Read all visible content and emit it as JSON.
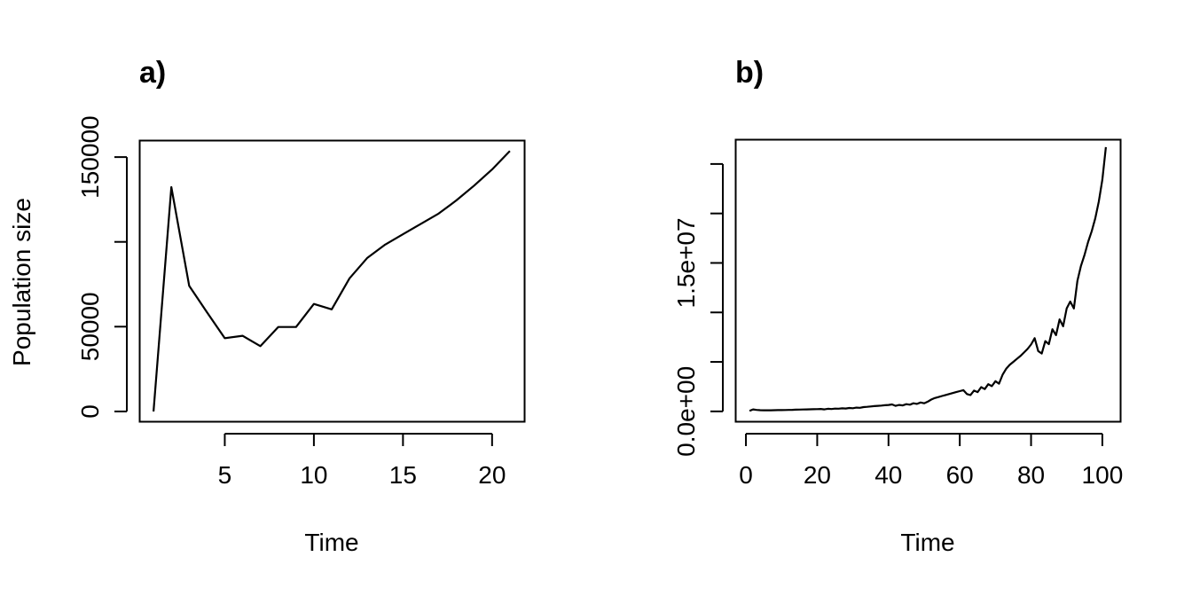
{
  "figure": {
    "panels": [
      {
        "label": "a)"
      },
      {
        "label": "b)"
      }
    ]
  },
  "chart_data": [
    {
      "type": "line",
      "title": "a)",
      "xlabel": "Time",
      "ylabel": "Population size",
      "xlim": [
        0.2,
        21.8
      ],
      "ylim": [
        -5800,
        160000
      ],
      "x_ticks": [
        5,
        10,
        15,
        20
      ],
      "x_tick_labels": [
        "5",
        "10",
        "15",
        "20"
      ],
      "y_ticks": [
        0,
        50000,
        100000,
        150000
      ],
      "y_tick_labels": [
        "0",
        "50000",
        "",
        "150000"
      ],
      "grid": false,
      "legend": null,
      "x": [
        1,
        2,
        3,
        4,
        5,
        6,
        7,
        8,
        9,
        10,
        11,
        12,
        13,
        14,
        15,
        16,
        17,
        18,
        19,
        20,
        21
      ],
      "values": [
        0,
        132300,
        74100,
        58500,
        43200,
        44600,
        38500,
        49800,
        49800,
        63400,
        60200,
        78500,
        90600,
        98400,
        104500,
        110600,
        116700,
        124500,
        133200,
        142700,
        153600
      ]
    },
    {
      "type": "line",
      "title": "b)",
      "xlabel": "Time",
      "ylabel": "",
      "xlim": [
        -3,
        105
      ],
      "ylim": [
        -1000000,
        27500000
      ],
      "x_ticks": [
        0,
        20,
        40,
        60,
        80,
        100
      ],
      "x_tick_labels": [
        "0",
        "20",
        "40",
        "60",
        "80",
        "100"
      ],
      "y_ticks": [
        0,
        5000000,
        10000000,
        15000000,
        20000000,
        25000000
      ],
      "y_tick_labels": [
        "0.0e+00",
        "",
        "",
        "1.5e+07",
        "",
        ""
      ],
      "grid": false,
      "legend": null,
      "x": [
        1,
        2,
        3,
        4,
        5,
        6,
        7,
        8,
        9,
        10,
        11,
        12,
        13,
        14,
        15,
        16,
        17,
        18,
        19,
        20,
        21,
        22,
        23,
        24,
        25,
        26,
        27,
        28,
        29,
        30,
        31,
        32,
        33,
        34,
        35,
        36,
        37,
        38,
        39,
        40,
        41,
        42,
        43,
        44,
        45,
        46,
        47,
        48,
        49,
        50,
        51,
        52,
        53,
        54,
        55,
        56,
        57,
        58,
        59,
        60,
        61,
        62,
        63,
        64,
        65,
        66,
        67,
        68,
        69,
        70,
        71,
        72,
        73,
        74,
        75,
        76,
        77,
        78,
        79,
        80,
        81,
        82,
        83,
        84,
        85,
        86,
        87,
        88,
        89,
        90,
        91,
        92,
        93,
        94,
        95,
        96,
        97,
        98,
        99,
        100,
        101
      ],
      "values": [
        50000,
        200000,
        150000,
        120000,
        110000,
        110000,
        115000,
        120000,
        125000,
        130000,
        140000,
        150000,
        160000,
        170000,
        180000,
        190000,
        200000,
        210000,
        220000,
        230000,
        245000,
        200000,
        260000,
        240000,
        280000,
        270000,
        310000,
        290000,
        340000,
        320000,
        380000,
        360000,
        430000,
        460000,
        500000,
        530000,
        560000,
        590000,
        620000,
        650000,
        700000,
        560000,
        650000,
        600000,
        730000,
        680000,
        820000,
        760000,
        900000,
        820000,
        980000,
        1200000,
        1350000,
        1450000,
        1550000,
        1650000,
        1750000,
        1850000,
        1950000,
        2050000,
        2150000,
        1750000,
        1650000,
        2100000,
        1950000,
        2450000,
        2250000,
        2750000,
        2550000,
        3050000,
        2800000,
        3700000,
        4300000,
        4700000,
        5000000,
        5300000,
        5600000,
        5950000,
        6300000,
        6750000,
        7400000,
        6100000,
        5850000,
        7100000,
        6800000,
        8300000,
        7700000,
        9300000,
        8600000,
        10400000,
        11100000,
        10400000,
        13200000,
        14700000,
        15800000,
        17100000,
        18200000,
        19500000,
        21200000,
        23400000,
        26700000
      ]
    }
  ]
}
